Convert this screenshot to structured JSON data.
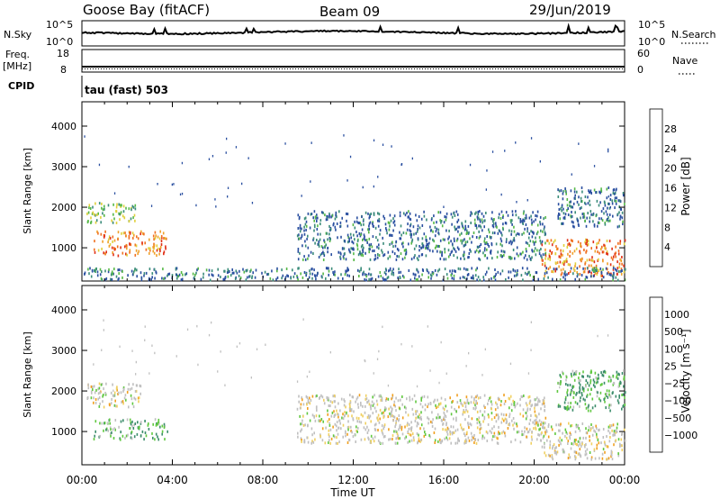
{
  "header": {
    "station": "Goose Bay (fitACF)",
    "beam": "Beam 09",
    "date": "29/Jun/2019"
  },
  "strip_panels": {
    "nsky_label": "N.Sky",
    "nsky_ticks": [
      "10^5",
      "10^0"
    ],
    "nsearch_label": "N.Search",
    "nsearch_ticks": [
      "10^5",
      "10^0"
    ],
    "freq_label_top": "Freq.",
    "freq_label_bottom": "[MHz]",
    "freq_ticks": [
      "18",
      "8"
    ],
    "nave_label": "Nave",
    "nave_ticks": [
      "60",
      "0"
    ],
    "cpid_label": "CPID",
    "cpid_value": "tau (fast) 503"
  },
  "colors": {
    "power_scale": [
      "#0000ff",
      "#2a4fa0",
      "#3b8c7a",
      "#56b847",
      "#e0d03a",
      "#f0a02a",
      "#f07020",
      "#e03018",
      "#e00000"
    ],
    "velocity_scale": [
      "#e00000",
      "#f06010",
      "#f0a020",
      "#f0d060",
      "#c0c0c0",
      "#60c840",
      "#3b8c6a",
      "#2a5fa0",
      "#0000ff"
    ]
  },
  "chart_data": [
    {
      "type": "heatmap",
      "name": "Power",
      "ylabel": "Slant Range [km]",
      "yticks": [
        "1000",
        "2000",
        "3000",
        "4000"
      ],
      "ylim": [
        180,
        4600
      ],
      "xlim": [
        0,
        24
      ],
      "colorbar": {
        "label": "Power [dB]",
        "ticks": [
          "4",
          "8",
          "12",
          "16",
          "20",
          "24",
          "28"
        ],
        "range": [
          0,
          32
        ]
      },
      "regions": [
        {
          "t0": 0.5,
          "t1": 3.8,
          "r0": 800,
          "r1": 1400,
          "level": "high"
        },
        {
          "t0": 0.2,
          "t1": 2.4,
          "r0": 1600,
          "r1": 2100,
          "level": "medium"
        },
        {
          "t0": 9.5,
          "t1": 20.5,
          "r0": 700,
          "r1": 1900,
          "level": "low"
        },
        {
          "t0": 20.3,
          "t1": 24.0,
          "r0": 300,
          "r1": 1200,
          "level": "high"
        },
        {
          "t0": 21.0,
          "t1": 24.0,
          "r0": 1500,
          "r1": 2500,
          "level": "low"
        },
        {
          "t0": 0.0,
          "t1": 24.0,
          "r0": 200,
          "r1": 500,
          "level": "low"
        }
      ]
    },
    {
      "type": "heatmap",
      "name": "Velocity",
      "ylabel": "Slant Range [km]",
      "yticks": [
        "1000",
        "2000",
        "3000",
        "4000"
      ],
      "ylim": [
        180,
        4600
      ],
      "xlim": [
        0,
        24
      ],
      "xlabel": "Time UT",
      "xticks": [
        "00:00",
        "04:00",
        "08:00",
        "12:00",
        "16:00",
        "20:00",
        "00:00"
      ],
      "colorbar": {
        "label": "Velocity [m s⁻¹]",
        "ticks": [
          "1000",
          "500",
          "100",
          "25",
          "−25",
          "−100",
          "−500",
          "−1000"
        ]
      },
      "regions": [
        {
          "t0": 0.5,
          "t1": 3.8,
          "r0": 800,
          "r1": 1300,
          "level": "positive"
        },
        {
          "t0": 0.2,
          "t1": 2.6,
          "r0": 1600,
          "r1": 2200,
          "level": "near-zero"
        },
        {
          "t0": 9.5,
          "t1": 20.5,
          "r0": 700,
          "r1": 1900,
          "level": "near-zero"
        },
        {
          "t0": 20.3,
          "t1": 24.0,
          "r0": 300,
          "r1": 1200,
          "level": "near-zero"
        },
        {
          "t0": 21.0,
          "t1": 24.0,
          "r0": 1500,
          "r1": 2500,
          "level": "positive"
        }
      ]
    }
  ]
}
